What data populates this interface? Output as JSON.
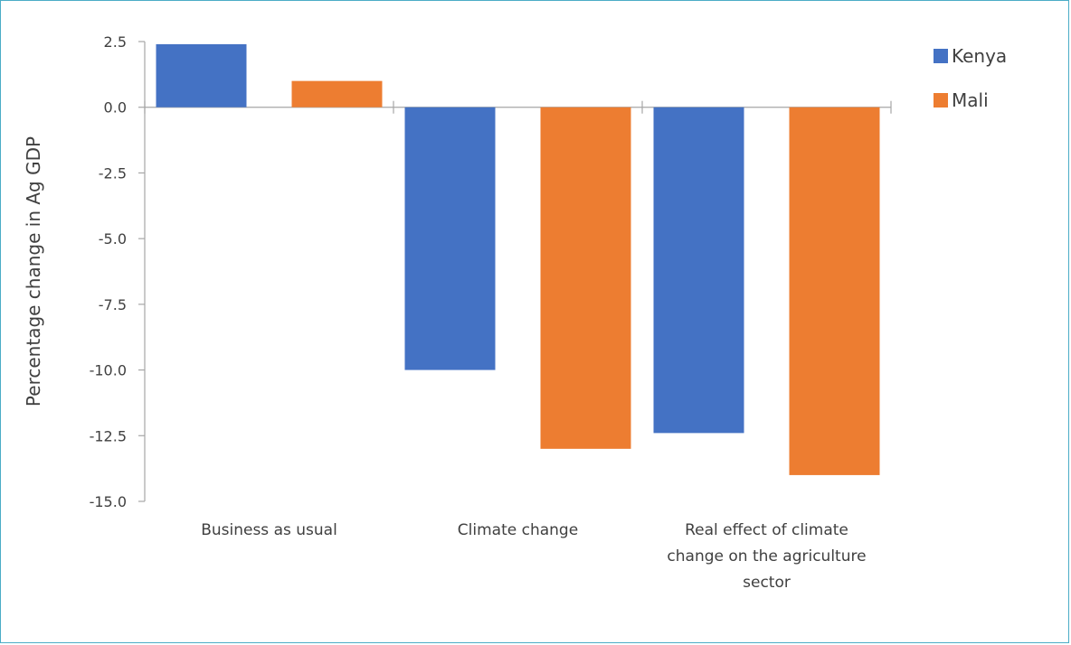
{
  "chart_data": {
    "type": "bar",
    "categories": [
      [
        "Business as usual"
      ],
      [
        "Climate change"
      ],
      [
        "Real effect of climate",
        "change on the agriculture",
        "sector"
      ]
    ],
    "series": [
      {
        "name": "Kenya",
        "color": "#4472c4",
        "values": [
          2.4,
          -10.0,
          -12.4
        ]
      },
      {
        "name": "Mali",
        "color": "#ed7d31",
        "values": [
          1.0,
          -13.0,
          -14.0
        ]
      }
    ],
    "ylabel": "Percentage change in Ag GDP",
    "xlabel": "",
    "ylim": [
      -15.0,
      2.5
    ],
    "yticks": [
      "2.5",
      "0.0",
      "-2.5",
      "-5.0",
      "-7.5",
      "-10.0",
      "-12.5",
      "-15.0"
    ],
    "grid": false,
    "legend_position": "top-right"
  }
}
